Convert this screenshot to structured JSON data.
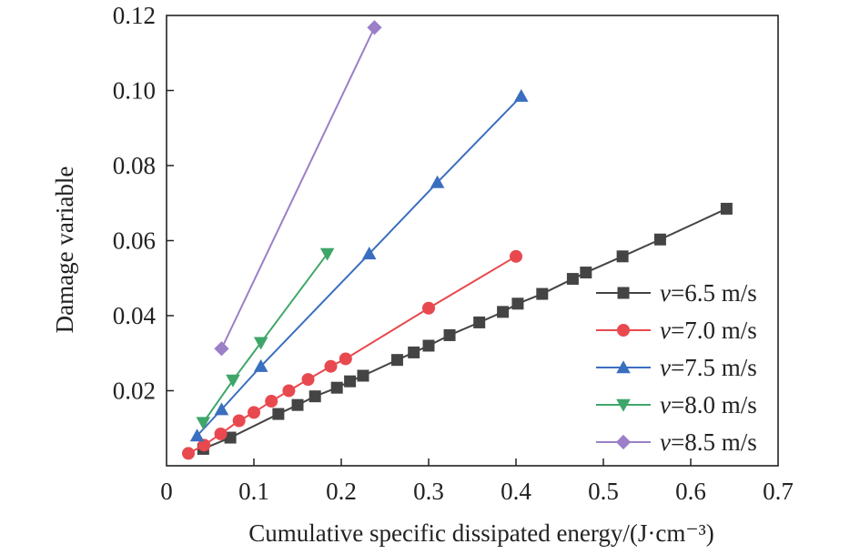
{
  "chart_data": {
    "type": "line",
    "title": "",
    "xlabel": "Cumulative specific dissipated energy/(J·cm⁻³)",
    "ylabel": "Damage variable",
    "xlim": [
      0,
      0.7
    ],
    "ylim": [
      0,
      0.12
    ],
    "xticks": [
      0,
      0.1,
      0.2,
      0.3,
      0.4,
      0.5,
      0.6,
      0.7
    ],
    "xtick_labels": [
      "0",
      "0.1",
      "0.2",
      "0.3",
      "0.4",
      "0.5",
      "0.6",
      "0.7"
    ],
    "yticks": [
      0.02,
      0.04,
      0.06,
      0.08,
      0.1,
      0.12
    ],
    "ytick_labels": [
      "0.02",
      "0.04",
      "0.06",
      "0.08",
      "0.10",
      "0.12"
    ],
    "grid": false,
    "legend_position": "bottom-right",
    "series": [
      {
        "name": "v=6.5 m/s",
        "name_var": "v",
        "name_rest": "=6.5 m/s",
        "color": "#444444",
        "marker": "square",
        "x": [
          0.042,
          0.073,
          0.128,
          0.15,
          0.17,
          0.195,
          0.21,
          0.225,
          0.264,
          0.283,
          0.3,
          0.324,
          0.358,
          0.385,
          0.402,
          0.43,
          0.465,
          0.48,
          0.522,
          0.565,
          0.641
        ],
        "y": [
          0.0045,
          0.0075,
          0.0138,
          0.0162,
          0.0185,
          0.0208,
          0.0225,
          0.024,
          0.0282,
          0.0302,
          0.032,
          0.0348,
          0.0382,
          0.041,
          0.0432,
          0.0458,
          0.0498,
          0.0515,
          0.0558,
          0.0603,
          0.0685
        ]
      },
      {
        "name": "v=7.0 m/s",
        "name_var": "v",
        "name_rest": "=7.0 m/s",
        "color": "#e8494f",
        "marker": "circle",
        "x": [
          0.025,
          0.043,
          0.062,
          0.083,
          0.1,
          0.12,
          0.14,
          0.162,
          0.188,
          0.205,
          0.3,
          0.4
        ],
        "y": [
          0.0033,
          0.0055,
          0.0085,
          0.012,
          0.0142,
          0.0172,
          0.02,
          0.023,
          0.0265,
          0.0285,
          0.042,
          0.0558
        ]
      },
      {
        "name": "v=7.5 m/s",
        "name_var": "v",
        "name_rest": "=7.5 m/s",
        "color": "#3a6fbf",
        "marker": "triangle-up",
        "x": [
          0.035,
          0.063,
          0.108,
          0.232,
          0.31,
          0.406
        ],
        "y": [
          0.008,
          0.015,
          0.0265,
          0.0565,
          0.0755,
          0.0985
        ]
      },
      {
        "name": "v=8.0 m/s",
        "name_var": "v",
        "name_rest": "=8.0 m/s",
        "color": "#3fa66a",
        "marker": "triangle-down",
        "x": [
          0.042,
          0.076,
          0.108,
          0.184
        ],
        "y": [
          0.0115,
          0.0228,
          0.0328,
          0.0565
        ]
      },
      {
        "name": "v=8.5 m/s",
        "name_var": "v",
        "name_rest": "=8.5 m/s",
        "color": "#9b7fc7",
        "marker": "diamond",
        "x": [
          0.063,
          0.238
        ],
        "y": [
          0.0312,
          0.1168
        ]
      }
    ]
  }
}
